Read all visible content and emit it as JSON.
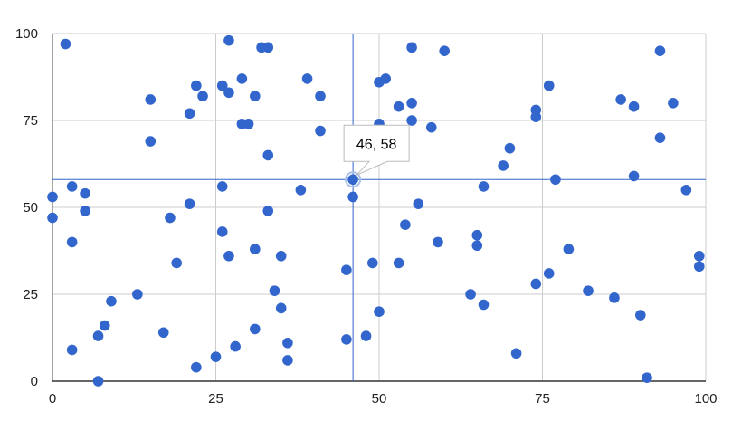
{
  "chart_data": {
    "type": "scatter",
    "title": "",
    "xlabel": "",
    "ylabel": "",
    "xlim": [
      0,
      100
    ],
    "ylim": [
      0,
      100
    ],
    "x_ticks": [
      "0",
      "25",
      "50",
      "75",
      "100"
    ],
    "y_ticks": [
      "0",
      "25",
      "50",
      "75",
      "100"
    ],
    "grid": true,
    "legend": "none",
    "color": "#3366cc",
    "crosshair": {
      "x": 46,
      "y": 58,
      "color": "#3366cc"
    },
    "tooltip": {
      "text": "46, 58"
    },
    "points": [
      [
        2,
        97
      ],
      [
        0,
        53
      ],
      [
        0,
        47
      ],
      [
        3,
        56
      ],
      [
        5,
        54
      ],
      [
        5,
        49
      ],
      [
        3,
        40
      ],
      [
        3,
        9
      ],
      [
        7,
        13
      ],
      [
        7,
        0
      ],
      [
        8,
        16
      ],
      [
        9,
        23
      ],
      [
        13,
        25
      ],
      [
        15,
        81
      ],
      [
        15,
        69
      ],
      [
        17,
        14
      ],
      [
        18,
        47
      ],
      [
        19,
        34
      ],
      [
        21,
        77
      ],
      [
        21,
        51
      ],
      [
        22,
        85
      ],
      [
        22,
        4
      ],
      [
        23,
        82
      ],
      [
        25,
        7
      ],
      [
        26,
        85
      ],
      [
        26,
        56
      ],
      [
        26,
        43
      ],
      [
        27,
        98
      ],
      [
        27,
        83
      ],
      [
        27,
        36
      ],
      [
        28,
        10
      ],
      [
        29,
        87
      ],
      [
        29,
        74
      ],
      [
        30,
        74
      ],
      [
        31,
        82
      ],
      [
        31,
        38
      ],
      [
        31,
        15
      ],
      [
        32,
        96
      ],
      [
        33,
        96
      ],
      [
        33,
        65
      ],
      [
        33,
        49
      ],
      [
        34,
        26
      ],
      [
        35,
        36
      ],
      [
        35,
        21
      ],
      [
        36,
        11
      ],
      [
        36,
        6
      ],
      [
        38,
        55
      ],
      [
        39,
        87
      ],
      [
        41,
        82
      ],
      [
        41,
        72
      ],
      [
        45,
        32
      ],
      [
        45,
        12
      ],
      [
        46,
        58
      ],
      [
        46,
        53
      ],
      [
        48,
        13
      ],
      [
        49,
        34
      ],
      [
        50,
        86
      ],
      [
        50,
        74
      ],
      [
        50,
        20
      ],
      [
        51,
        87
      ],
      [
        53,
        79
      ],
      [
        53,
        34
      ],
      [
        54,
        45
      ],
      [
        55,
        96
      ],
      [
        55,
        80
      ],
      [
        55,
        75
      ],
      [
        56,
        51
      ],
      [
        58,
        73
      ],
      [
        59,
        40
      ],
      [
        60,
        95
      ],
      [
        64,
        25
      ],
      [
        65,
        42
      ],
      [
        65,
        39
      ],
      [
        66,
        56
      ],
      [
        66,
        22
      ],
      [
        69,
        62
      ],
      [
        70,
        67
      ],
      [
        71,
        8
      ],
      [
        74,
        78
      ],
      [
        74,
        76
      ],
      [
        74,
        28
      ],
      [
        76,
        85
      ],
      [
        76,
        31
      ],
      [
        77,
        58
      ],
      [
        79,
        38
      ],
      [
        82,
        26
      ],
      [
        86,
        24
      ],
      [
        87,
        81
      ],
      [
        89,
        79
      ],
      [
        89,
        59
      ],
      [
        90,
        19
      ],
      [
        91,
        1
      ],
      [
        93,
        95
      ],
      [
        93,
        70
      ],
      [
        95,
        80
      ],
      [
        97,
        55
      ],
      [
        99,
        36
      ],
      [
        99,
        33
      ]
    ]
  }
}
